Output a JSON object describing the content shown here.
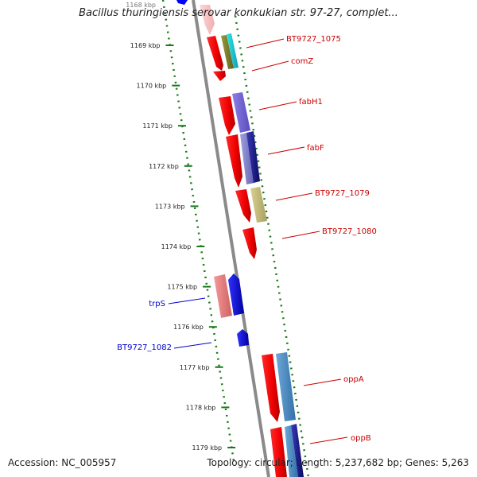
{
  "title": "Bacillus thuringiensis serovar konkukian str. 97-27, complet...",
  "footer": {
    "accession": "Accession: NC_005957",
    "topology": "Topology: circular; Length: 5,237,682 bp; Genes: 5,263"
  },
  "colors": {
    "forward_label": "#cc0000",
    "reverse_label": "#0000cc",
    "tick": "#1a7a1a",
    "backbone": "#8a8a8a"
  },
  "scale": {
    "unit": "kbp",
    "top_partial_label": "1168 kbp",
    "ticks": [
      "1169 kbp",
      "1170 kbp",
      "1171 kbp",
      "1172 kbp",
      "1173 kbp",
      "1174 kbp",
      "1175 kbp",
      "1176 kbp",
      "1177 kbp",
      "1178 kbp",
      "1179 kbp"
    ]
  },
  "genes": [
    {
      "label": "BT9727_1075",
      "strand": "forward",
      "color": "#ff0000"
    },
    {
      "label": "comZ",
      "strand": "forward",
      "color": "#ff0000"
    },
    {
      "label": "fabH1",
      "strand": "forward",
      "color": "#ff0000"
    },
    {
      "label": "fabF",
      "strand": "forward",
      "color": "#ff0000"
    },
    {
      "label": "BT9727_1079",
      "strand": "forward",
      "color": "#ff0000"
    },
    {
      "label": "BT9727_1080",
      "strand": "forward",
      "color": "#ff0000"
    },
    {
      "label": "trpS",
      "strand": "reverse",
      "color": "#0000ff"
    },
    {
      "label": "BT9727_1082",
      "strand": "reverse",
      "color": "#0000ff"
    },
    {
      "label": "oppA",
      "strand": "forward",
      "color": "#ff0000"
    },
    {
      "label": "oppB",
      "strand": "forward",
      "color": "#ff0000"
    }
  ]
}
